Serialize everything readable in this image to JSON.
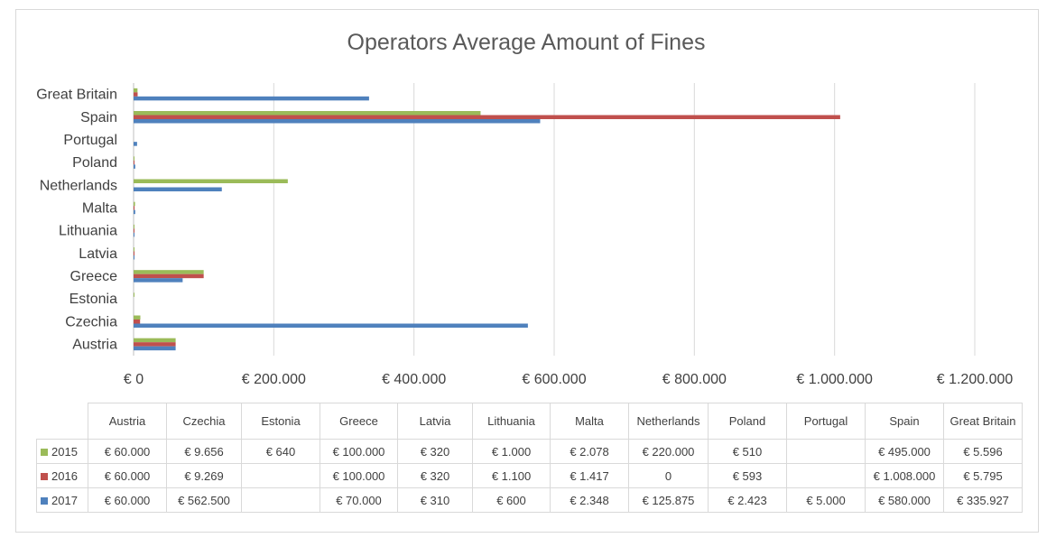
{
  "chart_data": {
    "type": "bar",
    "orientation": "horizontal",
    "title": "Operators Average Amount of Fines",
    "categories": [
      "Austria",
      "Czechia",
      "Estonia",
      "Greece",
      "Latvia",
      "Lithuania",
      "Malta",
      "Netherlands",
      "Poland",
      "Portugal",
      "Spain",
      "Great Britain"
    ],
    "series": [
      {
        "name": "2015",
        "color": "#9bbb59",
        "values": [
          60000,
          9656,
          640,
          100000,
          320,
          1000,
          2078,
          220000,
          510,
          null,
          495000,
          5596
        ],
        "labels": [
          "€ 60.000",
          "€ 9.656",
          "€ 640",
          "€ 100.000",
          "€ 320",
          "€ 1.000",
          "€ 2.078",
          "€ 220.000",
          "€ 510",
          "",
          "€ 495.000",
          "€ 5.596"
        ]
      },
      {
        "name": "2016",
        "color": "#c0504d",
        "values": [
          60000,
          9269,
          null,
          100000,
          320,
          1100,
          1417,
          0,
          593,
          null,
          1008000,
          5795
        ],
        "labels": [
          "€ 60.000",
          "€ 9.269",
          "",
          "€ 100.000",
          "€ 320",
          "€ 1.100",
          "€ 1.417",
          "0",
          "€ 593",
          "",
          "€ 1.008.000",
          "€ 5.795"
        ]
      },
      {
        "name": "2017",
        "color": "#4f81bd",
        "values": [
          60000,
          562500,
          null,
          70000,
          310,
          600,
          2348,
          125875,
          2423,
          5000,
          580000,
          335927
        ],
        "labels": [
          "€ 60.000",
          "€ 562.500",
          "",
          "€ 70.000",
          "€ 310",
          "€ 600",
          "€ 2.348",
          "€ 125.875",
          "€ 2.423",
          "€ 5.000",
          "€ 580.000",
          "€ 335.927"
        ]
      }
    ],
    "xlim": [
      0,
      1200000
    ],
    "x_ticks": [
      0,
      200000,
      400000,
      600000,
      800000,
      1000000,
      1200000
    ],
    "x_tick_labels": [
      "€ 0",
      "€ 200.000",
      "€ 400.000",
      "€ 600.000",
      "€ 800.000",
      "€ 1.000.000",
      "€ 1.200.000"
    ],
    "grid": true,
    "legend": "data-table"
  },
  "table": {
    "headers": [
      "Austria",
      "Czechia",
      "Estonia",
      "Greece",
      "Latvia",
      "Lithuania",
      "Malta",
      "Netherlands",
      "Poland",
      "Portugal",
      "Spain",
      "Great Britain"
    ]
  }
}
